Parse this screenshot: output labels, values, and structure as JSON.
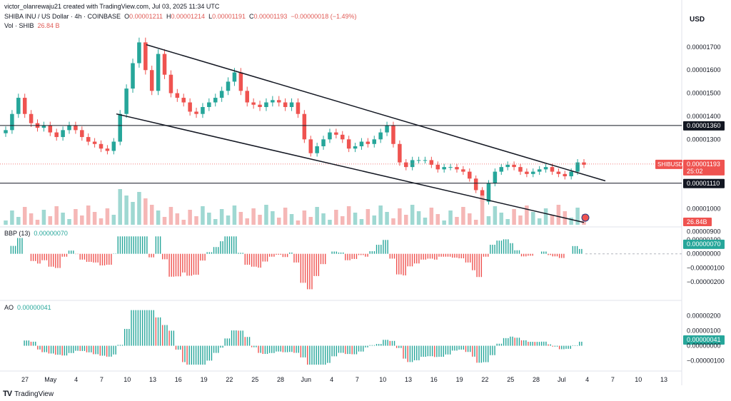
{
  "credit": "victor_olanrewaju21 created with TradingView.com, Jul 03, 2025 11:34 UTC",
  "header": {
    "symbol": "SHIBA INU / US Dollar · 4h · COINBASE",
    "o_label": "O",
    "o": "0.00001211",
    "h_label": "H",
    "h": "0.00001214",
    "l_label": "L",
    "l": "0.00001191",
    "c_label": "C",
    "c": "0.00001193",
    "change": "−0.00000018 (−1.49%)",
    "vol_label": "Vol · SHIB",
    "vol": "26.84 B"
  },
  "currency": "USD",
  "brand": "TradingView",
  "colors": {
    "up": "#26a69a",
    "down": "#ef5350",
    "line": "#131722",
    "bg": "#ffffff"
  },
  "chart_data": [
    {
      "type": "candlestick",
      "title": "SHIBA INU / US Dollar · 4h · COINBASE",
      "ylim": [
        9.3e-06,
        1.78e-05
      ],
      "y_ticks": [
        "0.00001700",
        "0.00001600",
        "0.00001500",
        "0.00001400",
        "0.00001300",
        "0.00001000",
        "0.00000900"
      ],
      "x_ticks": [
        "27",
        "May",
        "4",
        "7",
        "10",
        "13",
        "16",
        "19",
        "22",
        "25",
        "28",
        "Jun",
        "4",
        "7",
        "10",
        "13",
        "16",
        "19",
        "22",
        "25",
        "28",
        "Jul",
        "4",
        "7",
        "10",
        "13"
      ],
      "price_path_close": [
        1.34e-05,
        1.41e-05,
        1.48e-05,
        1.41e-05,
        1.37e-05,
        1.35e-05,
        1.36e-05,
        1.33e-05,
        1.31e-05,
        1.34e-05,
        1.36e-05,
        1.34e-05,
        1.31e-05,
        1.29e-05,
        1.28e-05,
        1.26e-05,
        1.25e-05,
        1.29e-05,
        1.41e-05,
        1.52e-05,
        1.63e-05,
        1.72e-05,
        1.6e-05,
        1.51e-05,
        1.67e-05,
        1.58e-05,
        1.5e-05,
        1.48e-05,
        1.46e-05,
        1.42e-05,
        1.41e-05,
        1.44e-05,
        1.46e-05,
        1.48e-05,
        1.51e-05,
        1.55e-05,
        1.59e-05,
        1.51e-05,
        1.46e-05,
        1.45e-05,
        1.44e-05,
        1.46e-05,
        1.47e-05,
        1.46e-05,
        1.44e-05,
        1.46e-05,
        1.41e-05,
        1.3e-05,
        1.24e-05,
        1.27e-05,
        1.3e-05,
        1.33e-05,
        1.32e-05,
        1.3e-05,
        1.26e-05,
        1.27e-05,
        1.29e-05,
        1.28e-05,
        1.3e-05,
        1.33e-05,
        1.36e-05,
        1.28e-05,
        1.2e-05,
        1.18e-05,
        1.21e-05,
        1.21e-05,
        1.21e-05,
        1.19e-05,
        1.17e-05,
        1.18e-05,
        1.18e-05,
        1.17e-05,
        1.16e-05,
        1.13e-05,
        1.08e-05,
        1.03e-05,
        1.11e-05,
        1.16e-05,
        1.18e-05,
        1.19e-05,
        1.18e-05,
        1.16e-05,
        1.15e-05,
        1.16e-05,
        1.17e-05,
        1.18e-05,
        1.16e-05,
        1.15e-05,
        1.14e-05,
        1.16e-05,
        1.2e-05,
        1.19e-05
      ],
      "annotations": [
        {
          "label": "SHIBUSD",
          "value": "0.00001193",
          "timer": "25:02",
          "kind": "last-price"
        },
        {
          "value": "0.00001360",
          "kind": "horizontal-level"
        },
        {
          "value": "0.00001110",
          "kind": "horizontal-level"
        },
        {
          "value": "26.84B",
          "kind": "volume-tag"
        }
      ],
      "trendlines": [
        {
          "name": "upper",
          "from": {
            "x": "May 11",
            "y": 1.71e-05
          },
          "to": {
            "x": "Jul 6",
            "y": 1.12e-05
          }
        },
        {
          "name": "lower",
          "from": {
            "x": "May 8",
            "y": 1.41e-05
          },
          "to": {
            "x": "Jul 3",
            "y": 9.4e-06
          }
        }
      ]
    },
    {
      "type": "bar",
      "title": "BBP (13)",
      "value": "0.00000070",
      "ylim": [
        -3e-06,
        1.3e-06
      ],
      "y_ticks": [
        "0.00000100",
        "0.00000070",
        "0.00000000",
        "−0.00000100",
        "−0.00000200"
      ]
    },
    {
      "type": "bar",
      "title": "AO",
      "value": "0.00000041",
      "ylim": [
        -1.4e-06,
        2.5e-06
      ],
      "y_ticks": [
        "0.00000200",
        "0.00000100",
        "0.00000041",
        "0.00000000",
        "−0.00000100"
      ]
    }
  ]
}
